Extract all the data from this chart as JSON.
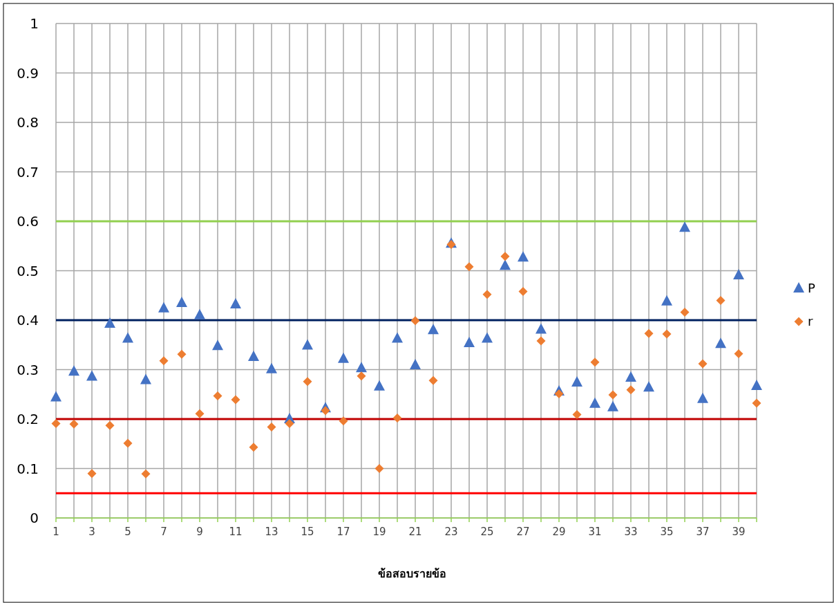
{
  "chart_data": {
    "type": "scatter",
    "xlabel": "ข้อสอบรายข้อ",
    "x": [
      1,
      2,
      3,
      4,
      5,
      6,
      7,
      8,
      9,
      10,
      11,
      12,
      13,
      14,
      15,
      16,
      17,
      18,
      19,
      20,
      21,
      22,
      23,
      24,
      25,
      26,
      27,
      28,
      29,
      30,
      31,
      32,
      33,
      34,
      35,
      36,
      37,
      38,
      39,
      40
    ],
    "series": [
      {
        "name": "P",
        "color": "#4472c4",
        "marker": "triangle",
        "values": [
          0.244,
          0.296,
          0.286,
          0.393,
          0.363,
          0.279,
          0.424,
          0.435,
          0.41,
          0.348,
          0.432,
          0.326,
          0.301,
          0.2,
          0.349,
          0.222,
          0.322,
          0.303,
          0.266,
          0.363,
          0.309,
          0.38,
          0.555,
          0.354,
          0.363,
          0.51,
          0.527,
          0.381,
          0.256,
          0.274,
          0.231,
          0.224,
          0.284,
          0.264,
          0.438,
          0.587,
          0.241,
          0.352,
          0.491,
          0.267
        ]
      },
      {
        "name": "r",
        "color": "#ed7d31",
        "marker": "diamond",
        "values": [
          0.191,
          0.19,
          0.09,
          0.187,
          0.151,
          0.089,
          0.318,
          0.331,
          0.211,
          0.247,
          0.239,
          0.143,
          0.184,
          0.191,
          0.276,
          0.217,
          0.196,
          0.287,
          0.1,
          0.202,
          0.399,
          0.278,
          0.553,
          0.508,
          0.452,
          0.529,
          0.458,
          0.358,
          0.251,
          0.209,
          0.315,
          0.249,
          0.259,
          0.373,
          0.372,
          0.416,
          0.312,
          0.44,
          0.332,
          0.232
        ]
      }
    ],
    "xlim": [
      1,
      40
    ],
    "xticks": [
      1,
      {
        "value": 2,
        "label": null
      },
      3,
      {
        "value": 4,
        "label": null
      },
      5,
      {
        "value": 6,
        "label": null
      },
      7,
      {
        "value": 8,
        "label": null
      },
      9,
      {
        "value": 10,
        "label": null
      },
      11,
      {
        "value": 12,
        "label": null
      },
      13,
      {
        "value": 14,
        "label": null
      },
      15,
      {
        "value": 16,
        "label": null
      },
      17,
      {
        "value": 18,
        "label": null
      },
      19,
      {
        "value": 20,
        "label": null
      },
      21,
      {
        "value": 22,
        "label": null
      },
      23,
      {
        "value": 24,
        "label": null
      },
      25,
      {
        "value": 26,
        "label": null
      },
      27,
      {
        "value": 28,
        "label": null
      },
      29,
      {
        "value": 30,
        "label": null
      },
      31,
      {
        "value": 32,
        "label": null
      },
      33,
      {
        "value": 34,
        "label": null
      },
      35,
      {
        "value": 36,
        "label": null
      },
      37,
      {
        "value": 38,
        "label": null
      },
      39,
      {
        "value": 40,
        "label": null
      }
    ],
    "ylim": [
      0,
      1
    ],
    "yticks": [
      0,
      0.1,
      0.2,
      0.3,
      0.4,
      0.5,
      0.6,
      0.7,
      0.8,
      0.9,
      1
    ],
    "grid": true,
    "legend": "right",
    "ref_lines": [
      {
        "axis": "y",
        "value": 0.6,
        "color": "#92d050"
      },
      {
        "axis": "y",
        "value": 0.4,
        "color": "#002060"
      },
      {
        "axis": "y",
        "value": 0.2,
        "color": "#c00000"
      },
      {
        "axis": "y",
        "value": 0.05,
        "color": "#ff0000"
      }
    ]
  }
}
